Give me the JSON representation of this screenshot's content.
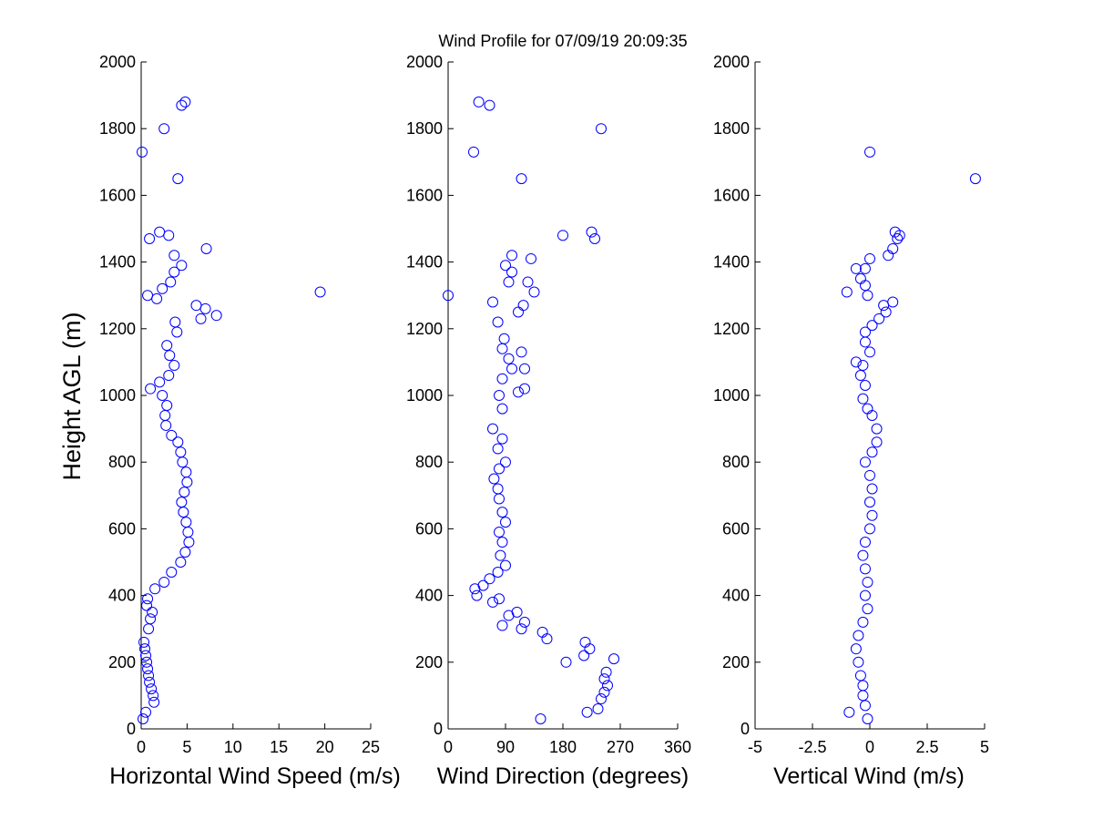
{
  "figure": {
    "title": "Wind Profile for  07/09/19 20:09:35"
  },
  "chart_data": [
    {
      "type": "scatter",
      "xlabel": "Horizontal Wind Speed (m/s)",
      "ylabel": "Height AGL (m)",
      "xlim": [
        0,
        25
      ],
      "ylim": [
        0,
        2000
      ],
      "xticks": [
        "0",
        "5",
        "10",
        "15",
        "20",
        "25"
      ],
      "yticks": [
        "0",
        "200",
        "400",
        "600",
        "800",
        "1000",
        "1200",
        "1400",
        "1600",
        "1800",
        "2000"
      ],
      "marker_color": "#0000ff",
      "points": [
        [
          0.2,
          30
        ],
        [
          0.5,
          50
        ],
        [
          1.4,
          80
        ],
        [
          1.3,
          100
        ],
        [
          1.1,
          120
        ],
        [
          0.9,
          140
        ],
        [
          0.8,
          160
        ],
        [
          0.7,
          180
        ],
        [
          0.6,
          200
        ],
        [
          0.5,
          220
        ],
        [
          0.4,
          240
        ],
        [
          0.3,
          260
        ],
        [
          0.8,
          300
        ],
        [
          1.0,
          330
        ],
        [
          1.2,
          350
        ],
        [
          0.6,
          370
        ],
        [
          0.7,
          390
        ],
        [
          1.5,
          420
        ],
        [
          2.5,
          440
        ],
        [
          3.3,
          470
        ],
        [
          4.3,
          500
        ],
        [
          4.8,
          530
        ],
        [
          5.2,
          560
        ],
        [
          5.1,
          590
        ],
        [
          4.9,
          620
        ],
        [
          4.6,
          650
        ],
        [
          4.4,
          680
        ],
        [
          4.7,
          710
        ],
        [
          5.0,
          740
        ],
        [
          4.9,
          770
        ],
        [
          4.5,
          800
        ],
        [
          4.3,
          830
        ],
        [
          4.0,
          860
        ],
        [
          3.3,
          880
        ],
        [
          2.7,
          910
        ],
        [
          2.6,
          940
        ],
        [
          2.8,
          970
        ],
        [
          2.3,
          1000
        ],
        [
          1.0,
          1020
        ],
        [
          2.0,
          1040
        ],
        [
          3.0,
          1060
        ],
        [
          3.6,
          1090
        ],
        [
          3.1,
          1120
        ],
        [
          2.8,
          1150
        ],
        [
          3.9,
          1190
        ],
        [
          3.7,
          1220
        ],
        [
          6.5,
          1230
        ],
        [
          8.2,
          1240
        ],
        [
          7.0,
          1260
        ],
        [
          6.0,
          1270
        ],
        [
          19.5,
          1310
        ],
        [
          1.7,
          1290
        ],
        [
          2.3,
          1320
        ],
        [
          0.7,
          1300
        ],
        [
          3.2,
          1340
        ],
        [
          3.6,
          1370
        ],
        [
          4.4,
          1390
        ],
        [
          3.6,
          1420
        ],
        [
          7.1,
          1440
        ],
        [
          3.0,
          1480
        ],
        [
          0.9,
          1470
        ],
        [
          2.0,
          1490
        ],
        [
          4.0,
          1650
        ],
        [
          0.1,
          1730
        ],
        [
          2.5,
          1800
        ],
        [
          4.4,
          1870
        ],
        [
          4.8,
          1880
        ]
      ]
    },
    {
      "type": "scatter",
      "xlabel": "Wind Direction (degrees)",
      "ylabel": "",
      "xlim": [
        0,
        360
      ],
      "ylim": [
        0,
        2000
      ],
      "xticks": [
        "0",
        "90",
        "180",
        "270",
        "360"
      ],
      "yticks": [
        "0",
        "200",
        "400",
        "600",
        "800",
        "1000",
        "1200",
        "1400",
        "1600",
        "1800",
        "2000"
      ],
      "marker_color": "#0000ff",
      "points": [
        [
          145,
          30
        ],
        [
          218,
          50
        ],
        [
          235,
          60
        ],
        [
          240,
          90
        ],
        [
          245,
          110
        ],
        [
          250,
          130
        ],
        [
          245,
          150
        ],
        [
          248,
          170
        ],
        [
          260,
          210
        ],
        [
          185,
          200
        ],
        [
          213,
          220
        ],
        [
          222,
          240
        ],
        [
          215,
          260
        ],
        [
          155,
          270
        ],
        [
          148,
          290
        ],
        [
          115,
          300
        ],
        [
          85,
          310
        ],
        [
          120,
          320
        ],
        [
          95,
          340
        ],
        [
          108,
          350
        ],
        [
          70,
          380
        ],
        [
          80,
          390
        ],
        [
          45,
          400
        ],
        [
          42,
          420
        ],
        [
          55,
          430
        ],
        [
          65,
          450
        ],
        [
          78,
          470
        ],
        [
          90,
          490
        ],
        [
          82,
          520
        ],
        [
          85,
          560
        ],
        [
          80,
          590
        ],
        [
          90,
          620
        ],
        [
          85,
          650
        ],
        [
          80,
          690
        ],
        [
          78,
          720
        ],
        [
          72,
          750
        ],
        [
          80,
          780
        ],
        [
          90,
          800
        ],
        [
          78,
          840
        ],
        [
          85,
          870
        ],
        [
          70,
          900
        ],
        [
          85,
          960
        ],
        [
          80,
          1000
        ],
        [
          110,
          1010
        ],
        [
          120,
          1020
        ],
        [
          85,
          1050
        ],
        [
          100,
          1080
        ],
        [
          120,
          1080
        ],
        [
          95,
          1110
        ],
        [
          85,
          1140
        ],
        [
          115,
          1130
        ],
        [
          88,
          1170
        ],
        [
          78,
          1220
        ],
        [
          110,
          1250
        ],
        [
          118,
          1270
        ],
        [
          70,
          1280
        ],
        [
          95,
          1340
        ],
        [
          125,
          1340
        ],
        [
          135,
          1310
        ],
        [
          100,
          1370
        ],
        [
          90,
          1390
        ],
        [
          100,
          1420
        ],
        [
          0,
          1300
        ],
        [
          130,
          1410
        ],
        [
          180,
          1480
        ],
        [
          225,
          1490
        ],
        [
          230,
          1470
        ],
        [
          115,
          1650
        ],
        [
          40,
          1730
        ],
        [
          240,
          1800
        ],
        [
          65,
          1870
        ],
        [
          48,
          1880
        ]
      ]
    },
    {
      "type": "scatter",
      "xlabel": "Vertical Wind (m/s)",
      "ylabel": "",
      "xlim": [
        -5,
        5
      ],
      "ylim": [
        0,
        2000
      ],
      "xticks": [
        "-5",
        "-2.5",
        "0",
        "2.5",
        "5"
      ],
      "yticks": [
        "0",
        "200",
        "400",
        "600",
        "800",
        "1000",
        "1200",
        "1400",
        "1600",
        "1800",
        "2000"
      ],
      "marker_color": "#0000ff",
      "points": [
        [
          -0.9,
          50
        ],
        [
          -0.1,
          30
        ],
        [
          -0.2,
          70
        ],
        [
          -0.3,
          100
        ],
        [
          -0.3,
          130
        ],
        [
          -0.4,
          160
        ],
        [
          -0.5,
          200
        ],
        [
          -0.6,
          240
        ],
        [
          -0.5,
          280
        ],
        [
          -0.3,
          320
        ],
        [
          -0.1,
          360
        ],
        [
          -0.2,
          400
        ],
        [
          -0.1,
          440
        ],
        [
          -0.2,
          480
        ],
        [
          -0.3,
          520
        ],
        [
          -0.2,
          560
        ],
        [
          0.0,
          600
        ],
        [
          0.1,
          640
        ],
        [
          0.0,
          680
        ],
        [
          0.1,
          720
        ],
        [
          0.0,
          760
        ],
        [
          -0.2,
          800
        ],
        [
          0.1,
          830
        ],
        [
          0.3,
          860
        ],
        [
          0.3,
          900
        ],
        [
          0.1,
          940
        ],
        [
          -0.1,
          960
        ],
        [
          -0.3,
          990
        ],
        [
          -0.2,
          1030
        ],
        [
          -0.4,
          1060
        ],
        [
          -0.3,
          1090
        ],
        [
          -0.6,
          1100
        ],
        [
          0.0,
          1130
        ],
        [
          -0.2,
          1160
        ],
        [
          0.1,
          1210
        ],
        [
          -0.2,
          1190
        ],
        [
          0.4,
          1230
        ],
        [
          0.7,
          1250
        ],
        [
          0.6,
          1270
        ],
        [
          1.0,
          1280
        ],
        [
          -1.0,
          1310
        ],
        [
          -0.1,
          1300
        ],
        [
          -0.2,
          1330
        ],
        [
          -0.4,
          1350
        ],
        [
          -0.6,
          1380
        ],
        [
          -0.2,
          1380
        ],
        [
          0.0,
          1410
        ],
        [
          0.8,
          1420
        ],
        [
          1.0,
          1440
        ],
        [
          1.2,
          1470
        ],
        [
          1.3,
          1480
        ],
        [
          1.1,
          1490
        ],
        [
          4.6,
          1650
        ],
        [
          0.0,
          1730
        ]
      ]
    }
  ]
}
